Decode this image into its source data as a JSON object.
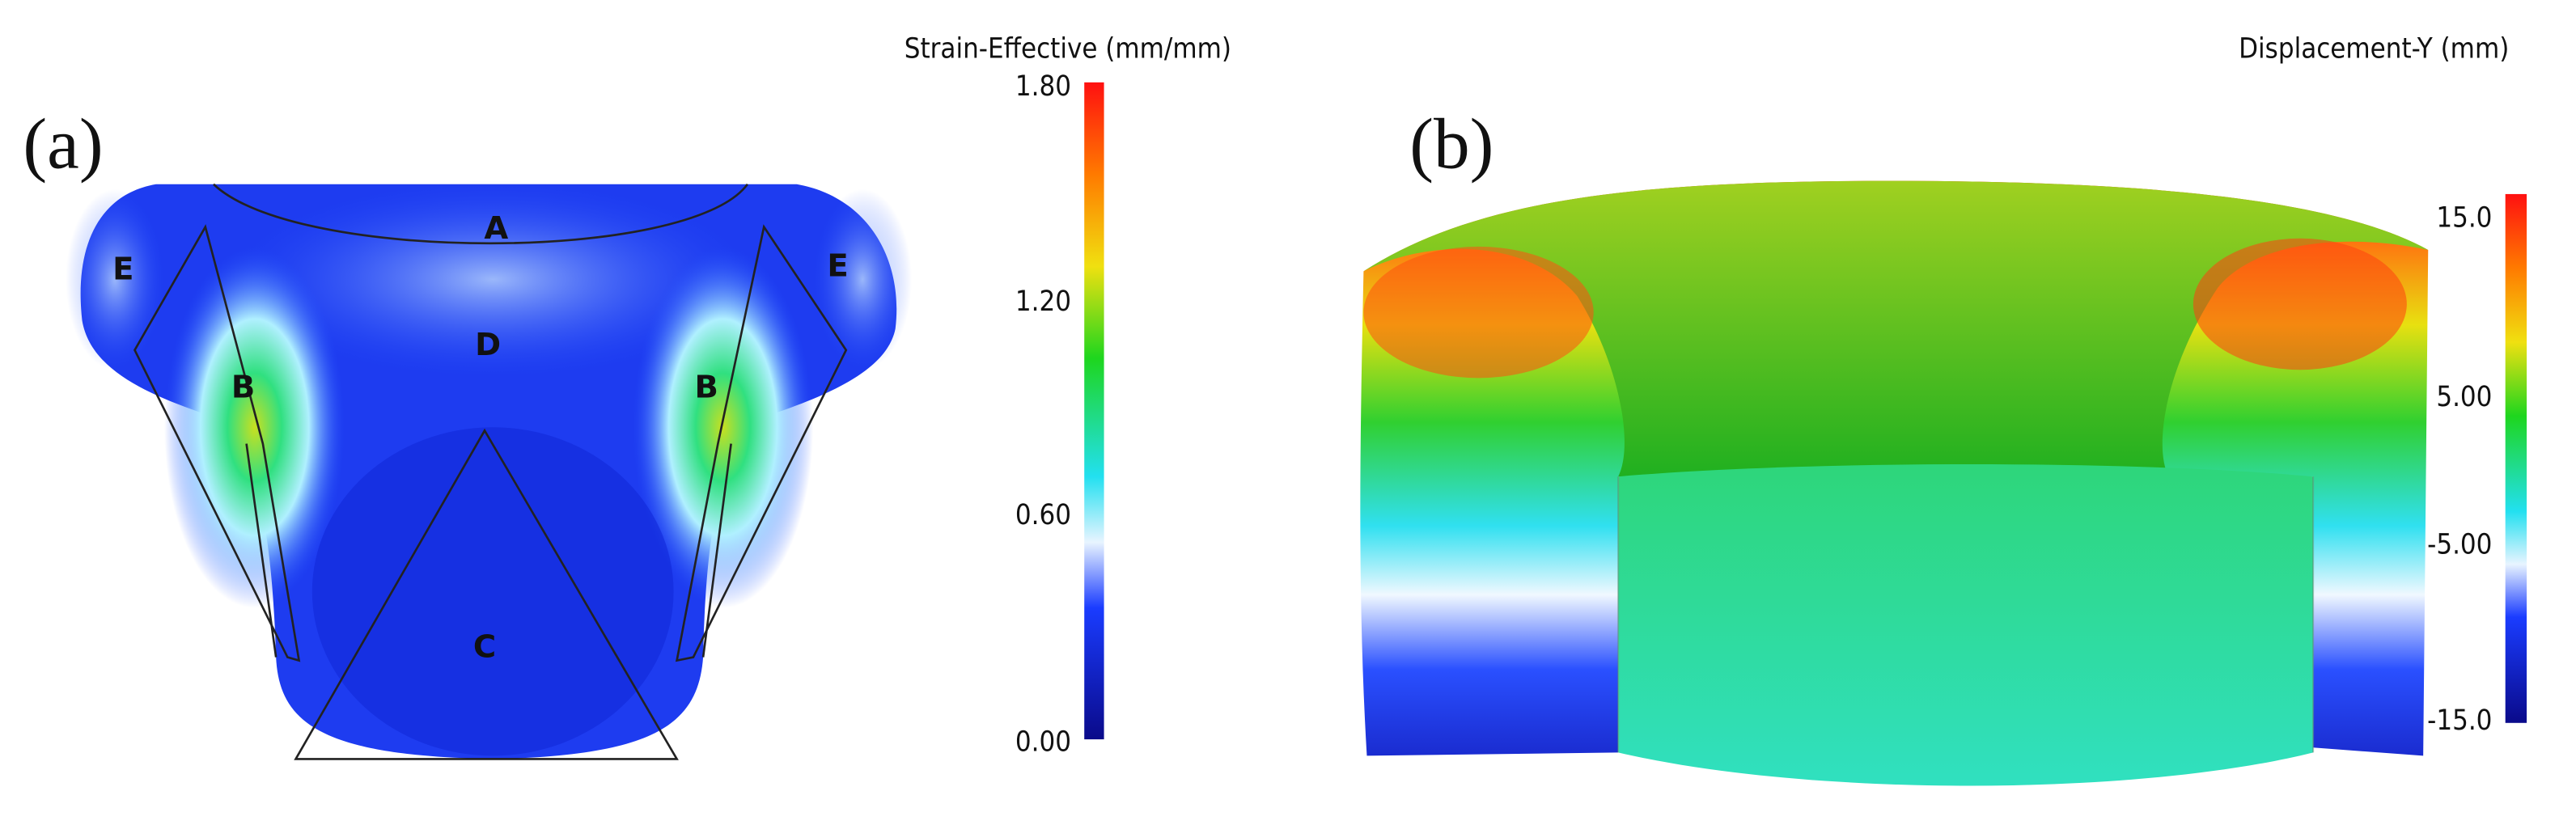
{
  "panel_a": {
    "label": "(a)",
    "regions": {
      "A": "A",
      "B_left": "B",
      "B_right": "B",
      "C": "C",
      "D": "D",
      "E_left": "E",
      "E_right": "E"
    },
    "colorbar": {
      "title": "Strain-Effective (mm/mm)",
      "ticks": [
        "1.80",
        "1.20",
        "0.60",
        "0.00"
      ],
      "range": [
        0.0,
        1.8
      ],
      "colors": [
        "#0a0a8a",
        "#1a3cff",
        "#ffffff",
        "#22e0f0",
        "#1ed61e",
        "#f0e010",
        "#ff7a00",
        "#ff1010"
      ]
    }
  },
  "panel_b": {
    "label": "(b)",
    "colorbar": {
      "title": "Displacement-Y (mm)",
      "ticks": [
        "15.0",
        "5.00",
        "-5.00",
        "-15.0"
      ],
      "range": [
        -15.0,
        15.0
      ],
      "colors": [
        "#0a0a8a",
        "#1a3cff",
        "#ffffff",
        "#22e0f0",
        "#1ed61e",
        "#f0e010",
        "#ff7a00",
        "#ff1010"
      ]
    }
  }
}
